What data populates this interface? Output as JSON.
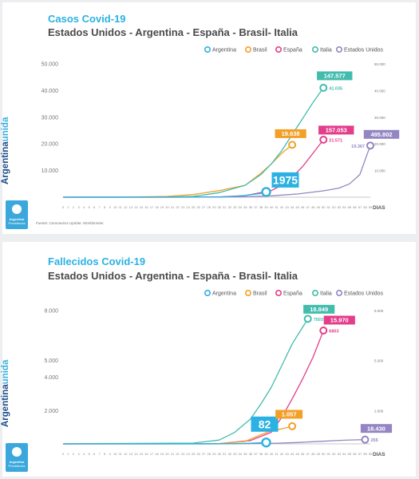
{
  "brand": {
    "part1": "Argentina",
    "part2": "unida",
    "logo_line1": "Argentina",
    "logo_line2": "Presidencia"
  },
  "colors": {
    "Argentina": "#2bb1e2",
    "Brasil": "#f3a029",
    "España": "#e43d8a",
    "Italia": "#43bcad",
    "Estados Unidos": "#9485c3",
    "accent_title": "#2bb1e2"
  },
  "chart_data": [
    {
      "type": "line",
      "title": "Casos Covid-19",
      "subtitle": "Estados Unidos - Argentina - España - Brasil- Italia",
      "source": "Fuente: Coronavirus Update, Worldometer.",
      "xlabel": "DIAS",
      "x": [
        0,
        1,
        2,
        3,
        4,
        5,
        6,
        7,
        8,
        9,
        10,
        11,
        12,
        13,
        14,
        15,
        16,
        17,
        18,
        19,
        20,
        21,
        22,
        23,
        24,
        25,
        26,
        27,
        28,
        29,
        30,
        31,
        32,
        33,
        34,
        35,
        36,
        37,
        38,
        39,
        40,
        41,
        42,
        43,
        44,
        45,
        46,
        47,
        48,
        49,
        50,
        51,
        52,
        53,
        54,
        55,
        56,
        57,
        58,
        59
      ],
      "left_ticks": [
        "10.000",
        "20.000",
        "30.000",
        "40.000",
        "50.000"
      ],
      "right_ticks": [
        "10.000",
        "20.000",
        "30.000",
        "40.000",
        "50.000"
      ],
      "ylim": [
        0,
        50000
      ],
      "right_ylim": [
        0,
        50000
      ],
      "legend": [
        "Argentina",
        "Brasil",
        "España",
        "Italia",
        "Estados Unidos"
      ],
      "legend_position": "top-right",
      "series": [
        {
          "name": "Argentina",
          "axis": "left",
          "x": [
            0,
            10,
            20,
            30,
            33,
            35,
            38,
            39
          ],
          "values": [
            0,
            2,
            10,
            60,
            300,
            700,
            1400,
            1975
          ]
        },
        {
          "name": "Brasil",
          "axis": "left",
          "x": [
            0,
            10,
            20,
            25,
            30,
            35,
            38,
            40,
            42,
            44
          ],
          "values": [
            0,
            5,
            300,
            1000,
            2500,
            4500,
            9000,
            12500,
            16500,
            19638
          ]
        },
        {
          "name": "España",
          "axis": "left",
          "x": [
            0,
            20,
            30,
            35,
            40,
            42,
            44,
            46,
            48,
            50
          ],
          "values": [
            0,
            5,
            100,
            600,
            2500,
            4500,
            7500,
            11500,
            16500,
            21571
          ]
        },
        {
          "name": "Italia",
          "axis": "left",
          "x": [
            0,
            20,
            25,
            30,
            35,
            38,
            40,
            42,
            44,
            46,
            48,
            50
          ],
          "values": [
            0,
            50,
            300,
            1700,
            4500,
            8500,
            12500,
            17500,
            23500,
            29500,
            35500,
            41035
          ]
        },
        {
          "name": "Estados Unidos",
          "axis": "left",
          "x": [
            0,
            25,
            35,
            40,
            45,
            50,
            53,
            55,
            57,
            58,
            59
          ],
          "values": [
            0,
            20,
            150,
            500,
            1200,
            2400,
            3400,
            5000,
            8500,
            14000,
            19367
          ]
        }
      ],
      "badges": [
        {
          "series": "Argentina",
          "label": "1975",
          "size": "big"
        },
        {
          "series": "Brasil",
          "label": "19.638"
        },
        {
          "series": "España",
          "label": "157.053",
          "sublabel": "21.571"
        },
        {
          "series": "Italia",
          "label": "147.577",
          "sublabel": "41.035"
        },
        {
          "series": "Estados Unidos",
          "label": "495.802",
          "sublabel": "19.367",
          "sublabel_side": "left"
        }
      ]
    },
    {
      "type": "line",
      "title": "Fallecidos Covid-19",
      "subtitle": "Estados Unidos - Argentina - España - Brasil- Italia",
      "xlabel": "DIAS",
      "x": [
        0,
        1,
        2,
        3,
        4,
        5,
        6,
        7,
        8,
        9,
        10,
        11,
        12,
        13,
        14,
        15,
        16,
        17,
        18,
        19,
        20,
        21,
        22,
        23,
        24,
        25,
        26,
        27,
        28,
        29,
        30,
        31,
        32,
        33,
        34,
        35,
        36,
        37,
        38,
        39,
        40,
        41,
        42,
        43,
        44,
        45,
        46,
        47,
        48,
        49,
        50,
        51,
        52,
        53,
        54,
        55,
        56,
        57,
        58,
        59
      ],
      "left_ticks": [
        "2.000",
        "4.000",
        "5.000",
        "8.000"
      ],
      "right_ticks": [
        "2.000",
        "5.000",
        "8.000"
      ],
      "ylim": [
        0,
        8000
      ],
      "legend": [
        "Argentina",
        "Brasil",
        "España",
        "Italia",
        "Estados Unidos"
      ],
      "legend_position": "top-right",
      "series": [
        {
          "name": "Argentina",
          "axis": "left",
          "x": [
            0,
            20,
            30,
            33,
            36,
            38,
            39
          ],
          "values": [
            0,
            0,
            3,
            15,
            40,
            70,
            82
          ]
        },
        {
          "name": "Brasil",
          "axis": "left",
          "x": [
            0,
            20,
            30,
            35,
            38,
            40,
            42,
            44
          ],
          "values": [
            0,
            2,
            20,
            150,
            550,
            800,
            900,
            1057
          ]
        },
        {
          "name": "España",
          "axis": "left",
          "x": [
            0,
            30,
            36,
            40,
            42,
            44,
            46,
            48,
            50
          ],
          "values": [
            0,
            20,
            200,
            700,
            1600,
            2700,
            3900,
            5200,
            6803
          ]
        },
        {
          "name": "Italia",
          "axis": "left",
          "x": [
            0,
            25,
            30,
            33,
            36,
            38,
            40,
            42,
            44,
            46,
            47
          ],
          "values": [
            0,
            50,
            230,
            700,
            1500,
            2400,
            3400,
            4700,
            6000,
            7000,
            7503
          ]
        },
        {
          "name": "Estados Unidos",
          "axis": "left",
          "x": [
            0,
            30,
            40,
            45,
            48,
            50,
            52,
            54,
            56,
            58
          ],
          "values": [
            0,
            2,
            30,
            80,
            130,
            160,
            190,
            220,
            240,
            255
          ]
        }
      ],
      "badges": [
        {
          "series": "Argentina",
          "label": "82",
          "size": "big"
        },
        {
          "series": "Brasil",
          "label": "1.057"
        },
        {
          "series": "España",
          "label": "15.970",
          "sublabel": "6803"
        },
        {
          "series": "Italia",
          "label": "18.849",
          "sublabel": "7503"
        },
        {
          "series": "Estados Unidos",
          "label": "18.430",
          "sublabel": "255"
        }
      ]
    }
  ]
}
